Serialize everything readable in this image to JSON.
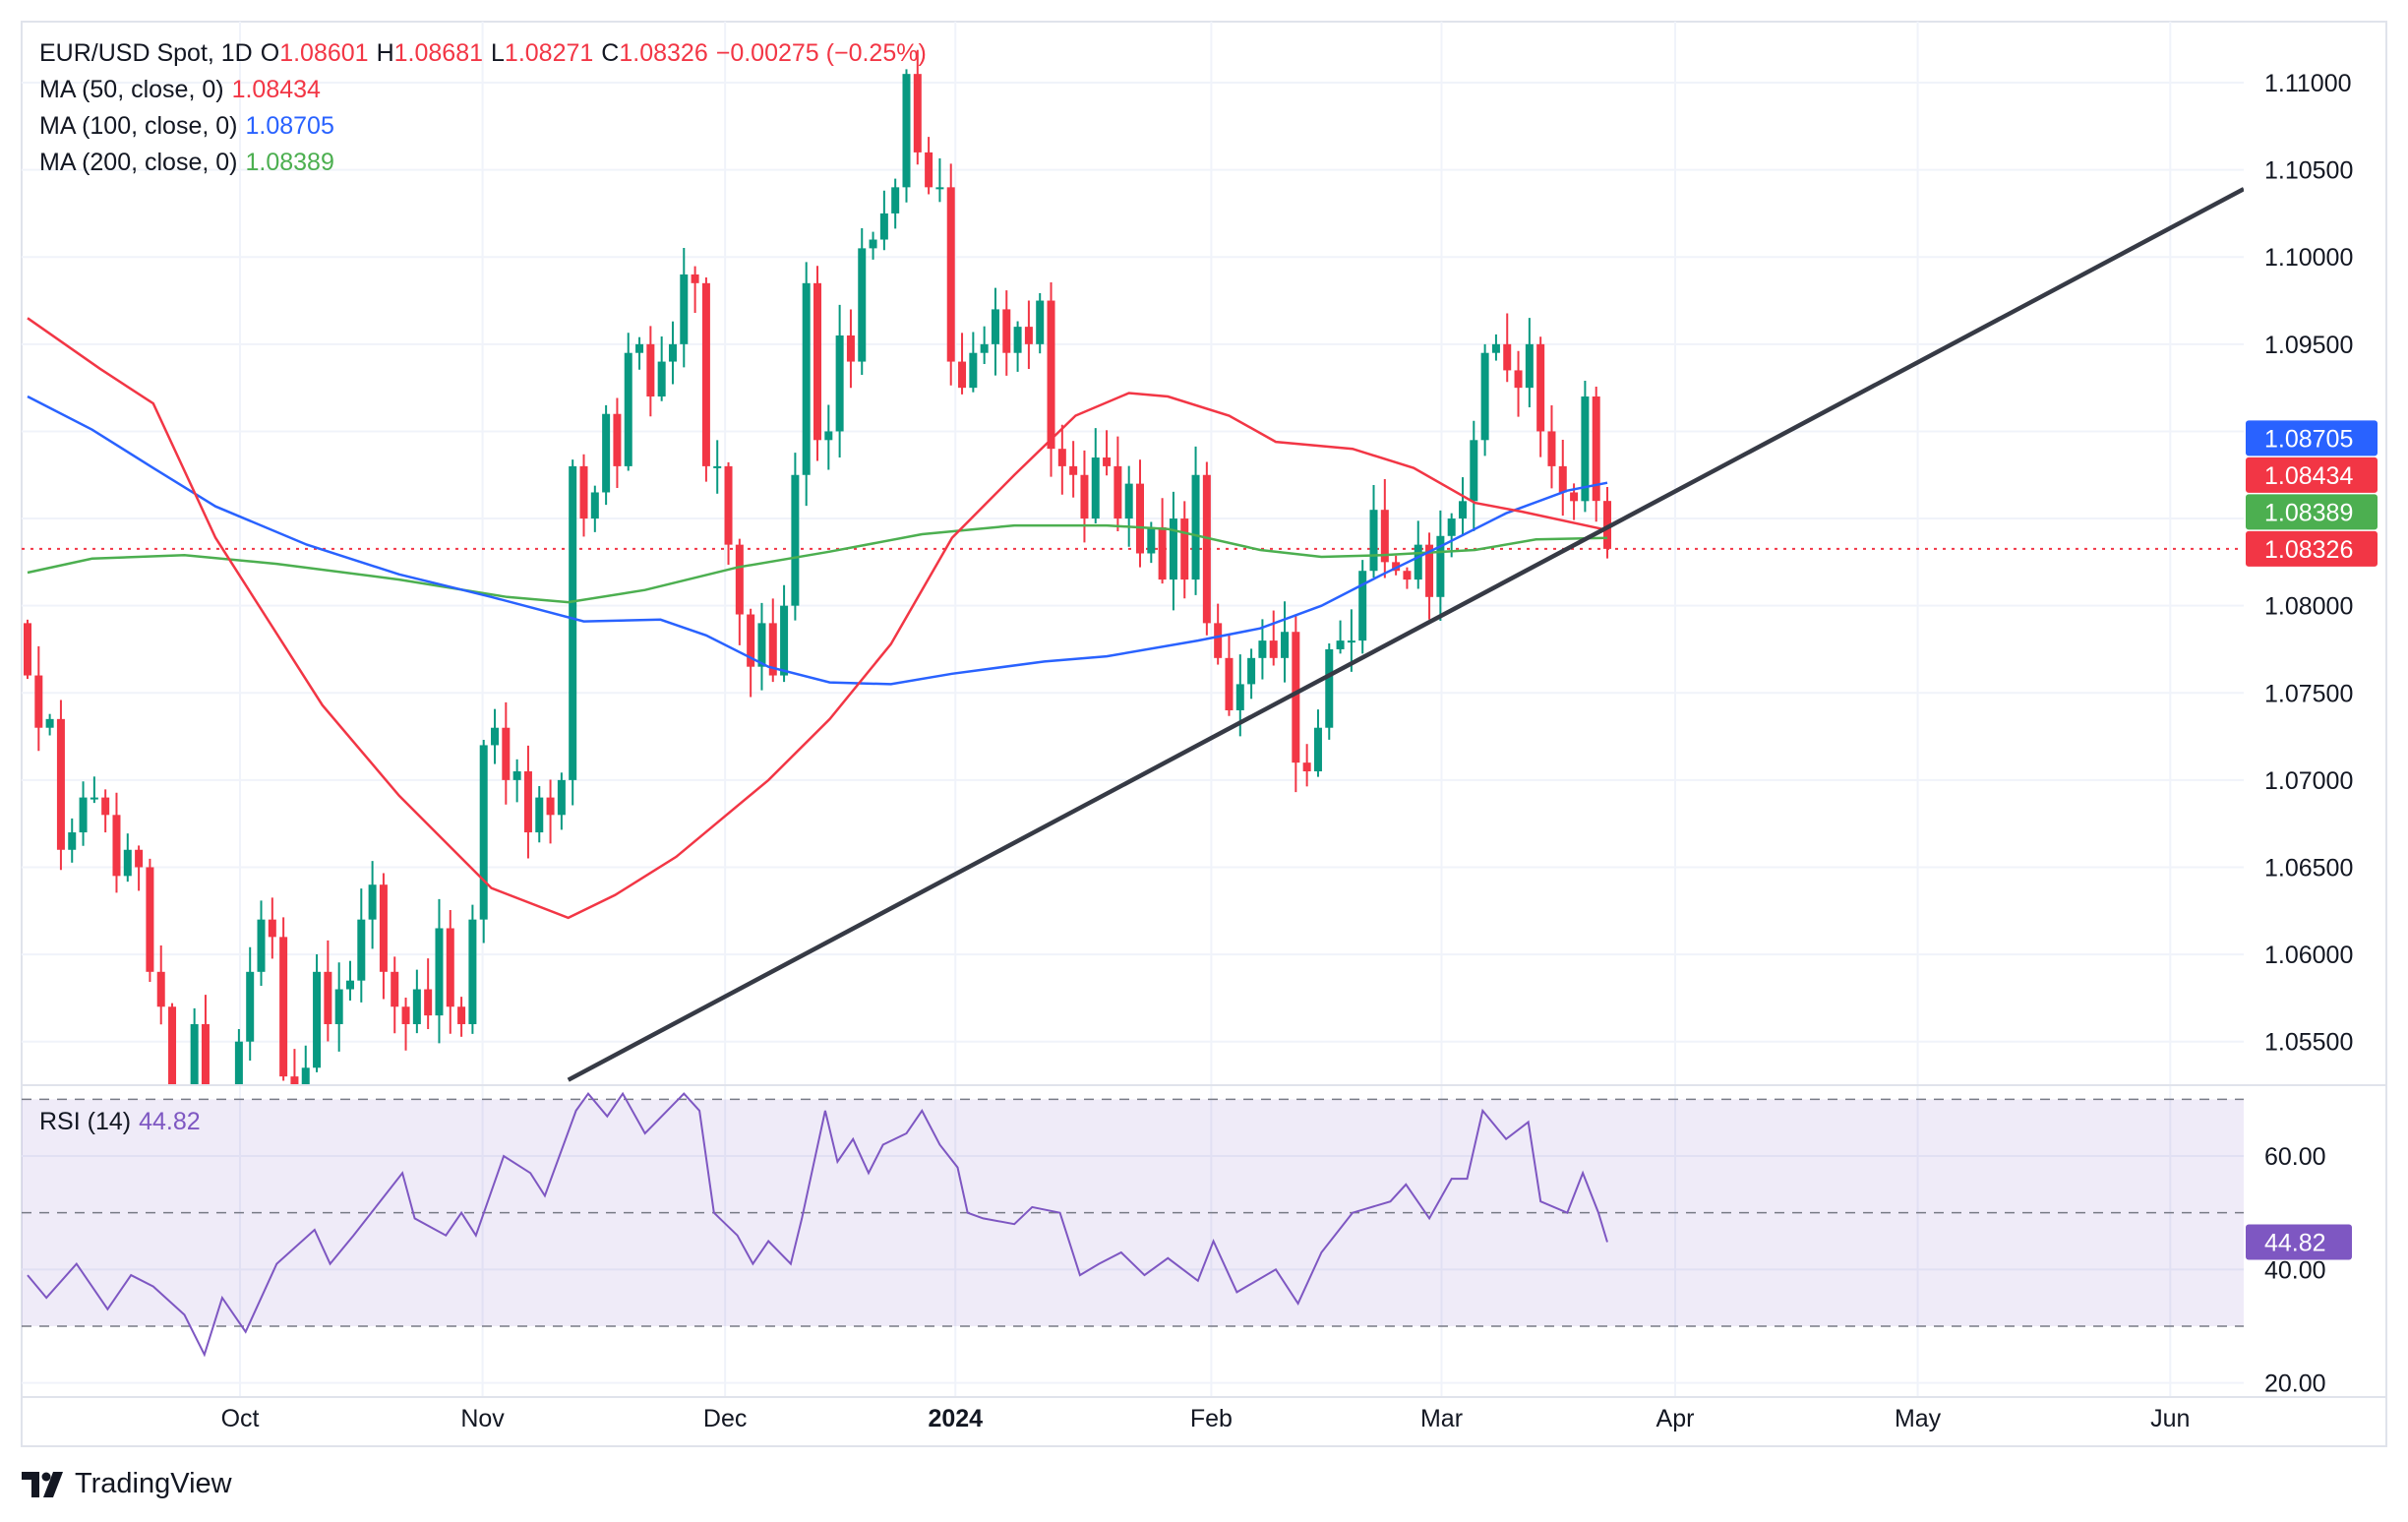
{
  "legend": {
    "symbol": "EUR/USD Spot, 1D",
    "o_label": "O",
    "o": "1.08601",
    "h_label": "H",
    "h": "1.08681",
    "l_label": "L",
    "l": "1.08271",
    "c_label": "C",
    "c": "1.08326",
    "change": "−0.00275 (−0.25%)",
    "ma50_label": "MA (50, close, 0)",
    "ma50_value": "1.08434",
    "ma100_label": "MA (100, close, 0)",
    "ma100_value": "1.08705",
    "ma200_label": "MA (200, close, 0)",
    "ma200_value": "1.08389",
    "rsi_label": "RSI (14)",
    "rsi_value": "44.82"
  },
  "brand": "TradingView",
  "colors": {
    "up": "#089981",
    "down": "#f23645",
    "ma50": "#f23645",
    "ma100": "#2962ff",
    "ma200": "#4caf50",
    "rsi": "#7e57c2",
    "trendline": "#363a45"
  },
  "chart_data": {
    "type": "candlestick",
    "title": "EUR/USD Spot, 1D",
    "first_open": 1.079,
    "closes": [
      1.076,
      1.073,
      1.0735,
      1.066,
      1.067,
      1.069,
      1.069,
      1.068,
      1.0645,
      1.066,
      1.065,
      1.059,
      1.057,
      1.0505,
      1.05,
      1.056,
      1.049,
      1.047,
      1.049,
      1.055,
      1.059,
      1.062,
      1.061,
      1.053,
      1.051,
      1.0535,
      1.059,
      1.056,
      1.058,
      1.0585,
      1.062,
      1.064,
      1.059,
      1.057,
      1.056,
      1.058,
      1.0565,
      1.0615,
      1.057,
      1.056,
      1.062,
      1.072,
      1.073,
      1.07,
      1.0705,
      1.067,
      1.069,
      1.068,
      1.07,
      1.088,
      1.085,
      1.0865,
      1.091,
      1.088,
      1.0945,
      1.095,
      1.092,
      1.094,
      1.095,
      1.099,
      1.0985,
      1.088,
      1.088,
      1.0835,
      1.0795,
      1.0765,
      1.079,
      1.076,
      1.08,
      1.0875,
      1.0985,
      1.0895,
      1.09,
      1.0955,
      1.094,
      1.1005,
      1.101,
      1.1025,
      1.104,
      1.1105,
      1.106,
      1.104,
      1.104,
      1.094,
      1.0925,
      1.0945,
      1.095,
      1.097,
      1.0945,
      1.096,
      1.095,
      1.0975,
      1.089,
      1.088,
      1.0875,
      1.085,
      1.0885,
      1.088,
      1.085,
      1.087,
      1.083,
      1.0845,
      1.0815,
      1.085,
      1.0815,
      1.0875,
      1.079,
      1.077,
      1.074,
      1.0755,
      1.077,
      1.078,
      1.077,
      1.0785,
      1.071,
      1.0705,
      1.073,
      1.0775,
      1.078,
      1.078,
      1.082,
      1.0855,
      1.0825,
      1.082,
      1.0815,
      1.0835,
      1.0805,
      1.084,
      1.085,
      1.086,
      1.0895,
      1.0945,
      1.095,
      1.0935,
      1.0925,
      1.095,
      1.09,
      1.088,
      1.0865,
      1.086,
      1.092,
      1.08601,
      1.08326
    ],
    "last_candle": {
      "open": 1.08601,
      "high": 1.08681,
      "low": 1.08271,
      "close": 1.08326
    },
    "ma50": [
      [
        0,
        1.0965
      ],
      [
        6.5,
        1.0936
      ],
      [
        11.3,
        1.0916
      ],
      [
        16.9,
        1.0839
      ],
      [
        26.5,
        1.0743
      ],
      [
        33.4,
        1.0691
      ],
      [
        41.7,
        1.0638
      ],
      [
        48.6,
        1.0621
      ],
      [
        52.8,
        1.0634
      ],
      [
        58.3,
        1.0656
      ],
      [
        66.6,
        1.07
      ],
      [
        72.1,
        1.0735
      ],
      [
        77.6,
        1.0778
      ],
      [
        83.1,
        1.0839
      ],
      [
        88.7,
        1.0875
      ],
      [
        94.2,
        1.0909
      ],
      [
        99,
        1.0922
      ],
      [
        102.5,
        1.092
      ],
      [
        108,
        1.0909
      ],
      [
        112.2,
        1.0894
      ],
      [
        119.1,
        1.089
      ],
      [
        124.6,
        1.0879
      ],
      [
        130.1,
        1.0859
      ],
      [
        134.3,
        1.0854
      ],
      [
        142,
        1.08434
      ]
    ],
    "ma100": [
      [
        0,
        1.092
      ],
      [
        5.8,
        1.0901
      ],
      [
        11.3,
        1.0879
      ],
      [
        16.9,
        1.0857
      ],
      [
        25.1,
        1.0835
      ],
      [
        33.4,
        1.0818
      ],
      [
        41.7,
        1.0805
      ],
      [
        50,
        1.0791
      ],
      [
        56.9,
        1.0792
      ],
      [
        61,
        1.0783
      ],
      [
        66.6,
        1.0765
      ],
      [
        72.1,
        1.0756
      ],
      [
        77.6,
        1.0755
      ],
      [
        83.1,
        1.0761
      ],
      [
        91.4,
        1.0768
      ],
      [
        97,
        1.0771
      ],
      [
        105.2,
        1.078
      ],
      [
        110.8,
        1.0787
      ],
      [
        116.3,
        1.08
      ],
      [
        121.8,
        1.0818
      ],
      [
        127.3,
        1.0835
      ],
      [
        132.9,
        1.0853
      ],
      [
        138.4,
        1.0866
      ],
      [
        142,
        1.08705
      ]
    ],
    "ma200": [
      [
        0,
        1.0819
      ],
      [
        5.8,
        1.0827
      ],
      [
        14.1,
        1.0829
      ],
      [
        22.4,
        1.0824
      ],
      [
        33.4,
        1.0815
      ],
      [
        43.1,
        1.0805
      ],
      [
        48.6,
        1.0802
      ],
      [
        55.5,
        1.0809
      ],
      [
        63.8,
        1.0822
      ],
      [
        72.1,
        1.0831
      ],
      [
        80.4,
        1.0841
      ],
      [
        88.7,
        1.0846
      ],
      [
        97,
        1.0846
      ],
      [
        102.5,
        1.0844
      ],
      [
        110.8,
        1.0832
      ],
      [
        116.3,
        1.0828
      ],
      [
        121.8,
        1.0829
      ],
      [
        130.1,
        1.0832
      ],
      [
        135.6,
        1.0838
      ],
      [
        142,
        1.08389
      ]
    ],
    "trendline": [
      [
        48.6,
        1.0528
      ],
      [
        199.2,
        1.1039
      ]
    ],
    "rsi": [
      [
        0,
        39
      ],
      [
        1.7,
        35
      ],
      [
        4.4,
        41
      ],
      [
        7.2,
        33
      ],
      [
        9.3,
        39
      ],
      [
        11.3,
        37
      ],
      [
        14.1,
        32
      ],
      [
        15.9,
        25
      ],
      [
        17.5,
        35
      ],
      [
        19.6,
        29
      ],
      [
        22.4,
        41
      ],
      [
        25.8,
        47
      ],
      [
        27.2,
        41
      ],
      [
        29.3,
        46
      ],
      [
        33.7,
        57
      ],
      [
        34.8,
        49
      ],
      [
        37.6,
        46
      ],
      [
        39,
        50
      ],
      [
        40.3,
        46
      ],
      [
        42.8,
        60
      ],
      [
        45.2,
        57
      ],
      [
        46.5,
        53
      ],
      [
        49.3,
        68
      ],
      [
        50.4,
        71
      ],
      [
        52.1,
        67
      ],
      [
        53.5,
        71
      ],
      [
        55.5,
        64
      ],
      [
        59,
        71
      ],
      [
        60.4,
        68
      ],
      [
        61.7,
        50
      ],
      [
        63.8,
        46
      ],
      [
        65.2,
        41
      ],
      [
        66.6,
        45
      ],
      [
        68.6,
        41
      ],
      [
        69.6,
        49
      ],
      [
        71.7,
        68
      ],
      [
        72.8,
        59
      ],
      [
        74.2,
        63
      ],
      [
        75.6,
        57
      ],
      [
        76.9,
        62
      ],
      [
        79,
        64
      ],
      [
        80.4,
        68
      ],
      [
        82,
        62
      ],
      [
        83.6,
        58
      ],
      [
        84.5,
        50
      ],
      [
        85.9,
        49
      ],
      [
        88.7,
        48
      ],
      [
        90.3,
        51
      ],
      [
        92.8,
        50
      ],
      [
        94.6,
        39
      ],
      [
        96.3,
        41
      ],
      [
        98.3,
        43
      ],
      [
        100.4,
        39
      ],
      [
        102.5,
        42
      ],
      [
        105.2,
        38
      ],
      [
        106.6,
        45
      ],
      [
        108.7,
        36
      ],
      [
        112.2,
        40
      ],
      [
        114.2,
        34
      ],
      [
        116.3,
        43
      ],
      [
        119.1,
        50
      ],
      [
        122.5,
        52
      ],
      [
        123.9,
        55
      ],
      [
        126,
        49
      ],
      [
        128,
        56
      ],
      [
        129.4,
        56
      ],
      [
        130.8,
        68
      ],
      [
        132.9,
        63
      ],
      [
        134.9,
        66
      ],
      [
        136,
        52
      ],
      [
        138.4,
        50
      ],
      [
        139.8,
        57
      ],
      [
        141.2,
        50
      ],
      [
        142,
        44.82
      ]
    ],
    "price_ticks": [
      "1.11000",
      "1.10500",
      "1.10000",
      "1.09500",
      "1.09000",
      "1.08500",
      "1.08000",
      "1.07500",
      "1.07000",
      "1.06500",
      "1.06000",
      "1.05500"
    ],
    "price_tick_labels_shown": [
      "1.11000",
      "1.10500",
      "1.10000",
      "1.09500",
      "1.08000",
      "1.07500",
      "1.07000",
      "1.06500",
      "1.06000",
      "1.05500"
    ],
    "price_range": [
      1.0525,
      1.1135
    ],
    "rsi_ticks": [
      "60.00",
      "40.00",
      "20.00"
    ],
    "rsi_bands": [
      30,
      50,
      70
    ],
    "rsi_range": [
      17.5,
      72.5
    ],
    "price_tags": [
      {
        "label": "1.08705",
        "color": "#2962ff"
      },
      {
        "label": "1.08434",
        "color": "#f23645"
      },
      {
        "label": "1.08389",
        "color": "#4caf50"
      },
      {
        "label": "1.08326",
        "color": "#f23645"
      }
    ],
    "rsi_tag": {
      "label": "44.82",
      "color": "#7e57c2"
    },
    "last_price": 1.08326,
    "time_labels": [
      {
        "label": "Oct",
        "i": 19.1,
        "bold": false
      },
      {
        "label": "Nov",
        "i": 40.9,
        "bold": false
      },
      {
        "label": "Dec",
        "i": 62.7,
        "bold": false
      },
      {
        "label": "2024",
        "i": 83.4,
        "bold": true
      },
      {
        "label": "Feb",
        "i": 106.4,
        "bold": false
      },
      {
        "label": "Mar",
        "i": 127.1,
        "bold": false
      },
      {
        "label": "Apr",
        "i": 148.1,
        "bold": false
      },
      {
        "label": "May",
        "i": 169.9,
        "bold": false
      },
      {
        "label": "Jun",
        "i": 192.6,
        "bold": false
      }
    ]
  }
}
